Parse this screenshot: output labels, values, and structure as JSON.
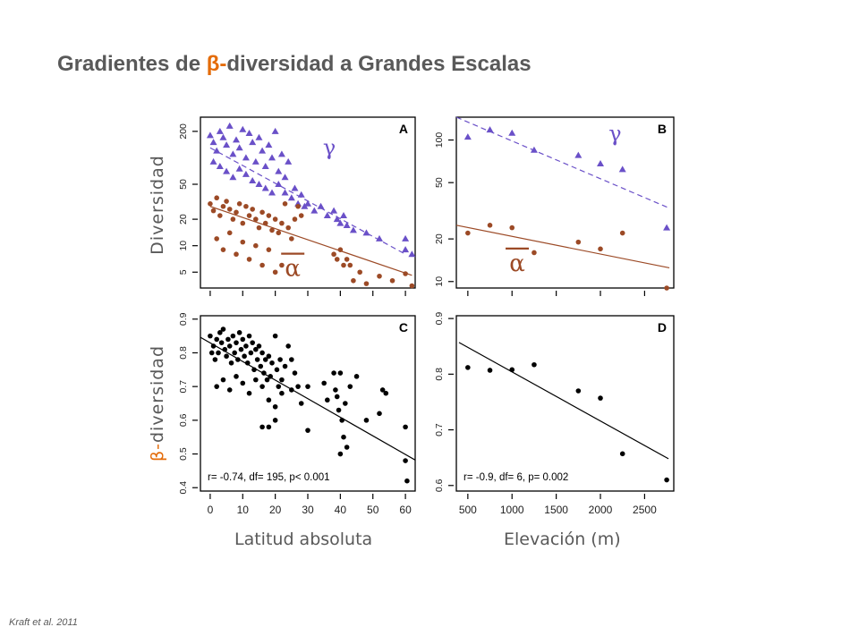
{
  "title": {
    "prefix": "Gradientes de ",
    "highlight": "β-",
    "suffix": "diversidad a Grandes Escalas"
  },
  "citation": "Kraft et al. 2011",
  "axis_labels": {
    "y_top": "Diversidad",
    "y_bottom_highlight": "β-",
    "y_bottom_rest": "diversidad",
    "x_left": "Latitud absoluta",
    "x_right": "Elevación (m)"
  },
  "colors": {
    "gamma": "#6a50c8",
    "alpha": "#9c4a26",
    "beta": "#000000",
    "title_highlight": "#e46c0a"
  },
  "chart_data": [
    {
      "panel": "A",
      "type": "scatter",
      "x_scale": "linear",
      "y_scale": "log",
      "xlim": [
        -3,
        63
      ],
      "ylim": [
        3.3,
        290
      ],
      "xticks": [
        0,
        10,
        20,
        30,
        40,
        50,
        60
      ],
      "yticks": [
        5,
        10,
        20,
        50,
        200
      ],
      "annotations": [
        "γ",
        "α"
      ],
      "series": [
        {
          "symbol": "γ",
          "marker": "triangle",
          "color": "#6a50c8",
          "fit": {
            "line": "dashed",
            "x": [
              0,
              60
            ],
            "y": [
              130,
              8
            ]
          },
          "points": [
            [
              0,
              180
            ],
            [
              1,
              150
            ],
            [
              2,
              120
            ],
            [
              3,
              200
            ],
            [
              4,
              170
            ],
            [
              5,
              140
            ],
            [
              6,
              230
            ],
            [
              7,
              110
            ],
            [
              8,
              160
            ],
            [
              9,
              130
            ],
            [
              10,
              210
            ],
            [
              11,
              100
            ],
            [
              12,
              190
            ],
            [
              13,
              150
            ],
            [
              14,
              90
            ],
            [
              15,
              170
            ],
            [
              16,
              120
            ],
            [
              17,
              80
            ],
            [
              18,
              140
            ],
            [
              19,
              100
            ],
            [
              20,
              200
            ],
            [
              21,
              70
            ],
            [
              22,
              110
            ],
            [
              23,
              60
            ],
            [
              24,
              90
            ],
            [
              1,
              90
            ],
            [
              3,
              80
            ],
            [
              5,
              70
            ],
            [
              7,
              60
            ],
            [
              9,
              75
            ],
            [
              11,
              65
            ],
            [
              13,
              55
            ],
            [
              15,
              50
            ],
            [
              17,
              45
            ],
            [
              19,
              40
            ],
            [
              21,
              50
            ],
            [
              23,
              40
            ],
            [
              25,
              35
            ],
            [
              26,
              45
            ],
            [
              27,
              30
            ],
            [
              28,
              38
            ],
            [
              29,
              28
            ],
            [
              30,
              30
            ],
            [
              32,
              25
            ],
            [
              34,
              28
            ],
            [
              36,
              22
            ],
            [
              38,
              25
            ],
            [
              39,
              20
            ],
            [
              40,
              18
            ],
            [
              41,
              22
            ],
            [
              42,
              17
            ],
            [
              44,
              15
            ],
            [
              48,
              14
            ],
            [
              52,
              12
            ],
            [
              60,
              12
            ],
            [
              60,
              9
            ],
            [
              62,
              8
            ]
          ]
        },
        {
          "symbol": "α",
          "marker": "circle",
          "color": "#9c4a26",
          "fit": {
            "line": "solid",
            "x": [
              0,
              62
            ],
            "y": [
              28,
              4.6
            ]
          },
          "points": [
            [
              0,
              30
            ],
            [
              1,
              25
            ],
            [
              2,
              35
            ],
            [
              3,
              22
            ],
            [
              4,
              28
            ],
            [
              5,
              32
            ],
            [
              6,
              26
            ],
            [
              7,
              20
            ],
            [
              8,
              24
            ],
            [
              9,
              30
            ],
            [
              10,
              18
            ],
            [
              11,
              28
            ],
            [
              12,
              22
            ],
            [
              13,
              26
            ],
            [
              14,
              20
            ],
            [
              15,
              16
            ],
            [
              16,
              24
            ],
            [
              17,
              18
            ],
            [
              18,
              22
            ],
            [
              19,
              15
            ],
            [
              20,
              20
            ],
            [
              21,
              14
            ],
            [
              22,
              18
            ],
            [
              23,
              30
            ],
            [
              24,
              16
            ],
            [
              25,
              12
            ],
            [
              26,
              20
            ],
            [
              27,
              28
            ],
            [
              28,
              22
            ],
            [
              2,
              12
            ],
            [
              4,
              9
            ],
            [
              6,
              14
            ],
            [
              8,
              8
            ],
            [
              10,
              11
            ],
            [
              12,
              7
            ],
            [
              14,
              10
            ],
            [
              16,
              6
            ],
            [
              18,
              9
            ],
            [
              20,
              5
            ],
            [
              22,
              6
            ],
            [
              38,
              8
            ],
            [
              39,
              7
            ],
            [
              40,
              9
            ],
            [
              41,
              6
            ],
            [
              42,
              7
            ],
            [
              43,
              6
            ],
            [
              44,
              4
            ],
            [
              46,
              5
            ],
            [
              48,
              3.7
            ],
            [
              52,
              4.5
            ],
            [
              56,
              4
            ],
            [
              60,
              4.8
            ],
            [
              62,
              3.5
            ]
          ]
        }
      ]
    },
    {
      "panel": "B",
      "type": "scatter",
      "x_scale": "linear",
      "y_scale": "log",
      "xlim": [
        370,
        2830
      ],
      "ylim": [
        9,
        145
      ],
      "xticks": [
        500,
        1000,
        1500,
        2000,
        2500
      ],
      "yticks": [
        10,
        20,
        50,
        100
      ],
      "annotations": [
        "γ",
        "α"
      ],
      "series": [
        {
          "symbol": "γ",
          "marker": "triangle",
          "color": "#6a50c8",
          "fit": {
            "line": "dashed",
            "x": [
              370,
              2780
            ],
            "y": [
              145,
              33
            ]
          },
          "points": [
            [
              500,
              105
            ],
            [
              750,
              118
            ],
            [
              1000,
              112
            ],
            [
              1250,
              85
            ],
            [
              1750,
              78
            ],
            [
              2000,
              68
            ],
            [
              2250,
              62
            ],
            [
              2750,
              24
            ]
          ]
        },
        {
          "symbol": "α",
          "marker": "circle",
          "color": "#9c4a26",
          "fit": {
            "line": "solid",
            "x": [
              370,
              2780
            ],
            "y": [
              25,
              12.5
            ]
          },
          "points": [
            [
              500,
              22
            ],
            [
              750,
              25
            ],
            [
              1000,
              24
            ],
            [
              1250,
              16
            ],
            [
              1750,
              19
            ],
            [
              2000,
              17
            ],
            [
              2250,
              22
            ],
            [
              2750,
              9
            ]
          ]
        }
      ]
    },
    {
      "panel": "C",
      "type": "scatter",
      "x_scale": "linear",
      "y_scale": "linear",
      "xlim": [
        -3,
        63
      ],
      "ylim": [
        0.39,
        0.91
      ],
      "xticks": [
        0,
        10,
        20,
        30,
        40,
        50,
        60
      ],
      "yticks": [
        0.4,
        0.5,
        0.6,
        0.7,
        0.8,
        0.9
      ],
      "stats": "r= -0.74, df= 195, p< 0.001",
      "series": [
        {
          "name": "β-diversidad",
          "marker": "circle",
          "color": "#000000",
          "fit": {
            "line": "solid",
            "x": [
              -3,
              63
            ],
            "y": [
              0.846,
              0.482
            ]
          },
          "points": [
            [
              0,
              0.85
            ],
            [
              0.5,
              0.8
            ],
            [
              1,
              0.82
            ],
            [
              1.5,
              0.78
            ],
            [
              2,
              0.84
            ],
            [
              2.5,
              0.8
            ],
            [
              3,
              0.86
            ],
            [
              3.5,
              0.83
            ],
            [
              4,
              0.87
            ],
            [
              4.5,
              0.81
            ],
            [
              5,
              0.79
            ],
            [
              5.5,
              0.84
            ],
            [
              6,
              0.82
            ],
            [
              6.5,
              0.77
            ],
            [
              7,
              0.85
            ],
            [
              7.5,
              0.8
            ],
            [
              8,
              0.83
            ],
            [
              8.5,
              0.78
            ],
            [
              9,
              0.86
            ],
            [
              9.5,
              0.81
            ],
            [
              10,
              0.84
            ],
            [
              10.5,
              0.79
            ],
            [
              11,
              0.82
            ],
            [
              11.5,
              0.77
            ],
            [
              12,
              0.85
            ],
            [
              12.5,
              0.8
            ],
            [
              13,
              0.83
            ],
            [
              13.5,
              0.75
            ],
            [
              14,
              0.81
            ],
            [
              14.5,
              0.78
            ],
            [
              15,
              0.82
            ],
            [
              15.5,
              0.76
            ],
            [
              16,
              0.8
            ],
            [
              16.5,
              0.74
            ],
            [
              17,
              0.78
            ],
            [
              17.5,
              0.72
            ],
            [
              18,
              0.79
            ],
            [
              18.5,
              0.73
            ],
            [
              19,
              0.77
            ],
            [
              20,
              0.85
            ],
            [
              20.5,
              0.75
            ],
            [
              21,
              0.7
            ],
            [
              21.5,
              0.78
            ],
            [
              22,
              0.72
            ],
            [
              23,
              0.76
            ],
            [
              24,
              0.82
            ],
            [
              25,
              0.78
            ],
            [
              26,
              0.74
            ],
            [
              27,
              0.7
            ],
            [
              2,
              0.7
            ],
            [
              4,
              0.72
            ],
            [
              6,
              0.69
            ],
            [
              8,
              0.73
            ],
            [
              10,
              0.71
            ],
            [
              12,
              0.68
            ],
            [
              14,
              0.72
            ],
            [
              16,
              0.7
            ],
            [
              18,
              0.66
            ],
            [
              20,
              0.64
            ],
            [
              22,
              0.68
            ],
            [
              25,
              0.69
            ],
            [
              28,
              0.65
            ],
            [
              16,
              0.58
            ],
            [
              18,
              0.58
            ],
            [
              20,
              0.6
            ],
            [
              30,
              0.57
            ],
            [
              30,
              0.7
            ],
            [
              35,
              0.71
            ],
            [
              36,
              0.66
            ],
            [
              38,
              0.74
            ],
            [
              38.5,
              0.69
            ],
            [
              39,
              0.67
            ],
            [
              39.5,
              0.63
            ],
            [
              40,
              0.74
            ],
            [
              40.5,
              0.6
            ],
            [
              41,
              0.55
            ],
            [
              41.5,
              0.65
            ],
            [
              42,
              0.52
            ],
            [
              40,
              0.5
            ],
            [
              43,
              0.7
            ],
            [
              45,
              0.73
            ],
            [
              48,
              0.6
            ],
            [
              52,
              0.62
            ],
            [
              53,
              0.69
            ],
            [
              54,
              0.68
            ],
            [
              60,
              0.58
            ],
            [
              60,
              0.48
            ],
            [
              60.5,
              0.42
            ]
          ]
        }
      ]
    },
    {
      "panel": "D",
      "type": "scatter",
      "x_scale": "linear",
      "y_scale": "linear",
      "xlim": [
        370,
        2830
      ],
      "ylim": [
        0.59,
        0.905
      ],
      "xticks": [
        500,
        1000,
        1500,
        2000,
        2500
      ],
      "yticks": [
        0.6,
        0.7,
        0.8,
        0.9
      ],
      "stats": "r= -0.9, df= 6, p= 0.002",
      "series": [
        {
          "name": "β-diversidad",
          "marker": "circle",
          "color": "#000000",
          "fit": {
            "line": "solid",
            "x": [
              400,
              2770
            ],
            "y": [
              0.857,
              0.648
            ]
          },
          "points": [
            [
              500,
              0.812
            ],
            [
              750,
              0.807
            ],
            [
              1000,
              0.808
            ],
            [
              1250,
              0.817
            ],
            [
              1750,
              0.77
            ],
            [
              2000,
              0.757
            ],
            [
              2250,
              0.657
            ],
            [
              2750,
              0.61
            ]
          ]
        }
      ]
    }
  ]
}
